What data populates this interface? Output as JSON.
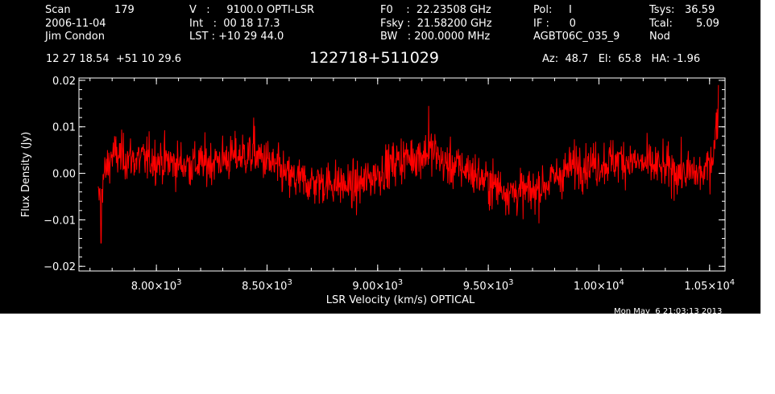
{
  "header": {
    "col1": {
      "scan_label": "Scan",
      "scan_value": "179",
      "date": "2006-11-04",
      "observer": "Jim Condon"
    },
    "col2": {
      "velocity": "V   :     9100.0 OPTI-LSR",
      "int": "Int   :  00 18 17.3",
      "lst": "LST : +10 29 44.0"
    },
    "col3": {
      "f0": "F0    :  22.23508 GHz",
      "fsky": "Fsky :  21.58200 GHz",
      "bw": "BW   : 200.0000 MHz"
    },
    "col4": {
      "pol": "Pol:     I",
      "if": "IF :      0",
      "project": "AGBT06C_035_9"
    },
    "col5": {
      "tsys_label": "Tsys:",
      "tsys_value": "36.59",
      "tcal_label": "Tcal:",
      "tcal_value": "5.09",
      "mode": "Nod"
    },
    "coords": "12 27 18.54  +51 10 29.6",
    "source": "122718+511029",
    "pointing": "Az:  48.7   El:  65.8   HA: -1.96"
  },
  "timestamp": "Mon May  6 21:03:13 2013",
  "colors": {
    "background": "#000000",
    "trace": "#ff0000",
    "axes": "#ffffff"
  },
  "chart_data": {
    "type": "line",
    "xlabel": "LSR Velocity (km/s) OPTICAL",
    "ylabel": "Flux Density (Jy)",
    "xlim": [
      7650,
      10570
    ],
    "ylim": [
      -0.021,
      0.0205
    ],
    "x_ticks": [
      {
        "value": 8000,
        "mant": "8.00×10",
        "exp": "3"
      },
      {
        "value": 8500,
        "mant": "8.50×10",
        "exp": "3"
      },
      {
        "value": 9000,
        "mant": "9.00×10",
        "exp": "3"
      },
      {
        "value": 9500,
        "mant": "9.50×10",
        "exp": "3"
      },
      {
        "value": 10000,
        "mant": "1.00×10",
        "exp": "4"
      },
      {
        "value": 10500,
        "mant": "1.05×10",
        "exp": "4"
      }
    ],
    "y_ticks": [
      {
        "value": 0.02,
        "label": "0.02"
      },
      {
        "value": 0.01,
        "label": "0.01"
      },
      {
        "value": 0.0,
        "label": "0.00"
      },
      {
        "value": -0.01,
        "label": "−0.01"
      },
      {
        "value": -0.02,
        "label": "−0.02"
      }
    ],
    "series": [
      {
        "color": "#ff0000",
        "x_start": 7737,
        "x_end": 10540,
        "baseline": [
          [
            7737,
            -0.006
          ],
          [
            7760,
            -0.001
          ],
          [
            7800,
            0.004
          ],
          [
            7900,
            0.003
          ],
          [
            8000,
            0.003
          ],
          [
            8100,
            0.002
          ],
          [
            8200,
            0.002
          ],
          [
            8300,
            0.003
          ],
          [
            8400,
            0.004
          ],
          [
            8450,
            0.004
          ],
          [
            8520,
            0.002
          ],
          [
            8600,
            -0.001
          ],
          [
            8700,
            -0.002
          ],
          [
            8800,
            -0.002
          ],
          [
            8900,
            -0.003
          ],
          [
            9000,
            0.0
          ],
          [
            9100,
            0.003
          ],
          [
            9200,
            0.004
          ],
          [
            9250,
            0.005
          ],
          [
            9300,
            0.002
          ],
          [
            9400,
            0.001
          ],
          [
            9500,
            -0.002
          ],
          [
            9600,
            -0.004
          ],
          [
            9700,
            -0.004
          ],
          [
            9800,
            -0.001
          ],
          [
            9900,
            0.002
          ],
          [
            10000,
            0.002
          ],
          [
            10100,
            0.003
          ],
          [
            10200,
            0.002
          ],
          [
            10300,
            0.001
          ],
          [
            10400,
            0.0
          ],
          [
            10480,
            0.0
          ],
          [
            10520,
            0.005
          ],
          [
            10540,
            0.014
          ]
        ],
        "noise_rms": 0.004,
        "extremes": [
          [
            7750,
            -0.015
          ],
          [
            8440,
            0.012
          ],
          [
            9230,
            0.0145
          ],
          [
            10540,
            0.019
          ]
        ]
      }
    ]
  }
}
